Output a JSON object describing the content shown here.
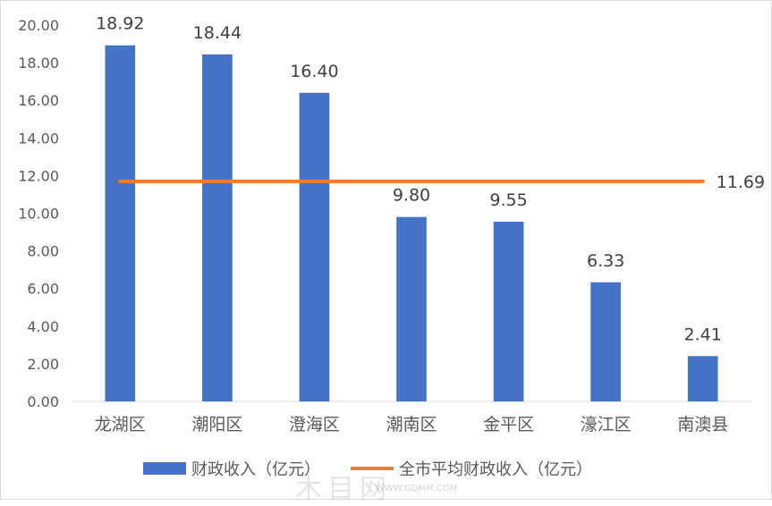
{
  "chart_data": {
    "type": "bar",
    "categories": [
      "龙湖区",
      "潮阳区",
      "澄海区",
      "潮南区",
      "金平区",
      "濠江区",
      "南澳县"
    ],
    "series": [
      {
        "name": "财政收入（亿元）",
        "type": "bar",
        "color": "#4472c4",
        "values": [
          18.92,
          18.44,
          16.4,
          9.8,
          9.55,
          6.33,
          2.41
        ],
        "value_labels": [
          "18.92",
          "18.44",
          "16.40",
          "9.80",
          "9.55",
          "6.33",
          "2.41"
        ]
      },
      {
        "name": "全市平均财政收入（亿元）",
        "type": "line",
        "color": "#ed7d31",
        "value": 11.69,
        "value_label": "11.69"
      }
    ],
    "ylim": [
      0,
      20
    ],
    "yticks": [
      0,
      2,
      4,
      6,
      8,
      10,
      12,
      14,
      16,
      18,
      20
    ],
    "ytick_labels": [
      "0.00",
      "2.00",
      "4.00",
      "6.00",
      "8.00",
      "10.00",
      "12.00",
      "14.00",
      "16.00",
      "18.00",
      "20.00"
    ],
    "grid": false,
    "legend_position": "bottom"
  },
  "watermark": {
    "text": "木目网",
    "url_text": "WWW.GDMM.COM"
  }
}
